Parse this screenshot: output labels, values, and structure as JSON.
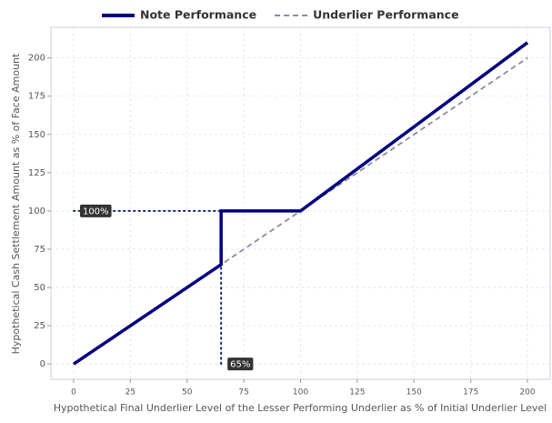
{
  "chart_data": {
    "type": "line",
    "xlabel": "Hypothetical Final Underlier Level of the Lesser Performing Underlier as % of Initial Underlier Level",
    "ylabel": "Hypothetical Cash Settlement Amount as % of Face Amount",
    "xlim": [
      -10,
      210
    ],
    "ylim": [
      -10,
      220
    ],
    "xticks": [
      0,
      25,
      50,
      75,
      100,
      125,
      150,
      175,
      200
    ],
    "yticks": [
      0,
      25,
      50,
      75,
      100,
      125,
      150,
      175,
      200
    ],
    "grid": true,
    "legend": "top",
    "series": [
      {
        "name": "Note Performance",
        "color": "#000080",
        "style": "solid",
        "x": [
          0,
          65,
          65,
          100,
          200
        ],
        "values": [
          0,
          65,
          100,
          100,
          210
        ]
      },
      {
        "name": "Underlier Performance",
        "color": "#8c8ca0",
        "style": "dashed",
        "x": [
          0,
          200
        ],
        "values": [
          0,
          200
        ]
      }
    ],
    "annotations": [
      {
        "text": "100%",
        "x": [
          0,
          65
        ],
        "y": [
          100,
          100
        ]
      },
      {
        "text": "65%",
        "x": [
          65,
          65
        ],
        "y": [
          0,
          65
        ]
      }
    ]
  }
}
